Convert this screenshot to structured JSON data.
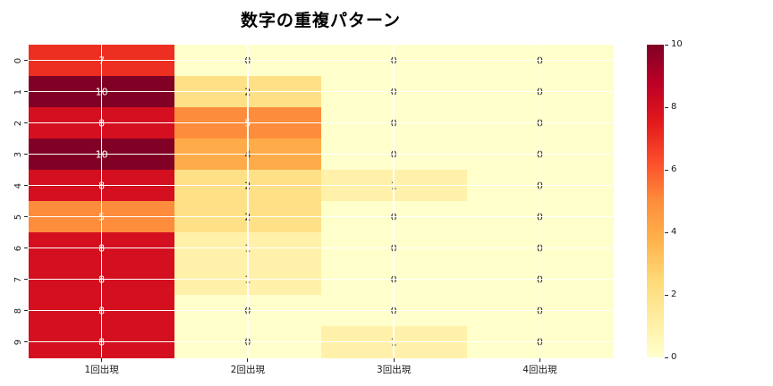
{
  "title": "数字の重複パターン",
  "chart_data": {
    "type": "heatmap",
    "title": "数字の重複パターン",
    "row_labels": [
      "0",
      "1",
      "2",
      "3",
      "4",
      "5",
      "6",
      "7",
      "8",
      "9"
    ],
    "column_labels": [
      "1回出現",
      "2回出現",
      "3回出現",
      "4回出現"
    ],
    "values": [
      [
        7,
        0,
        0,
        0
      ],
      [
        10,
        2,
        0,
        0
      ],
      [
        8,
        5,
        0,
        0
      ],
      [
        10,
        4,
        0,
        0
      ],
      [
        8,
        2,
        1,
        0
      ],
      [
        5,
        2,
        0,
        0
      ],
      [
        8,
        1,
        0,
        0
      ],
      [
        8,
        1,
        0,
        0
      ],
      [
        8,
        0,
        0,
        0
      ],
      [
        8,
        0,
        1,
        0
      ]
    ],
    "vmin": 0,
    "vmax": 10,
    "colorbar_tick_labels": [
      "0",
      "2",
      "4",
      "6",
      "8",
      "10"
    ],
    "colorbar_tick_values": [
      0,
      2,
      4,
      6,
      8,
      10
    ],
    "colormap": {
      "name": "YlOrRd",
      "stops": [
        "#ffffcc",
        "#ffeda0",
        "#fed976",
        "#feb24c",
        "#fd8d3c",
        "#fc4e2a",
        "#e31a1c",
        "#bd0026",
        "#800026"
      ]
    },
    "grid": true,
    "grid_color": "#ffffff",
    "annot_color_dark": "#262626",
    "annot_color_light": "#ffffff",
    "legend_position": "right-colorbar"
  }
}
